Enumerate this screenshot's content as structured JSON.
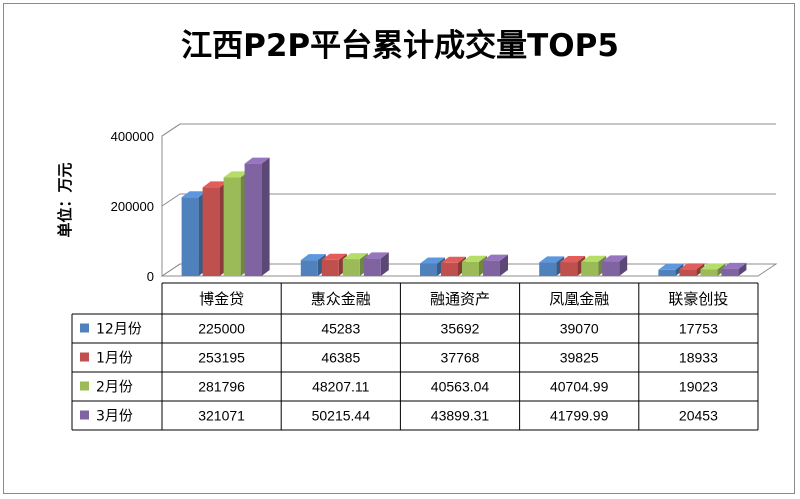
{
  "colors": {
    "series": [
      "#4f81bd",
      "#c0504d",
      "#9bbb59",
      "#8064a2"
    ],
    "grid": "#8c8c8c",
    "frame": "#8a8a8a"
  },
  "chart_data": {
    "type": "bar",
    "title": "江西P2P平台累计成交量TOP5",
    "ylabel": "单位：万元",
    "xlabel": "",
    "ylim": [
      0,
      400000
    ],
    "yticks": [
      "0",
      "200000",
      "400000"
    ],
    "grid": true,
    "legend": "data-table",
    "categories": [
      "博金贷",
      "惠众金融",
      "融通资产",
      "凤凰金融",
      "联豪创投"
    ],
    "series": [
      {
        "name": "12月份",
        "values": [
          225000,
          45283,
          35692,
          39070,
          17753
        ],
        "labels": [
          "225000",
          "45283",
          "35692",
          "39070",
          "17753"
        ]
      },
      {
        "name": "1月份",
        "values": [
          253195,
          46385,
          37768,
          39825,
          18933
        ],
        "labels": [
          "253195",
          "46385",
          "37768",
          "39825",
          "18933"
        ]
      },
      {
        "name": "2月份",
        "values": [
          281796,
          48207.11,
          40563.04,
          40704.99,
          19023
        ],
        "labels": [
          "281796",
          "48207.11",
          "40563.04",
          "40704.99",
          "19023"
        ]
      },
      {
        "name": "3月份",
        "values": [
          321071,
          50215.44,
          43899.31,
          41799.99,
          20453
        ],
        "labels": [
          "321071",
          "50215.44",
          "43899.31",
          "41799.99",
          "20453"
        ]
      }
    ]
  }
}
